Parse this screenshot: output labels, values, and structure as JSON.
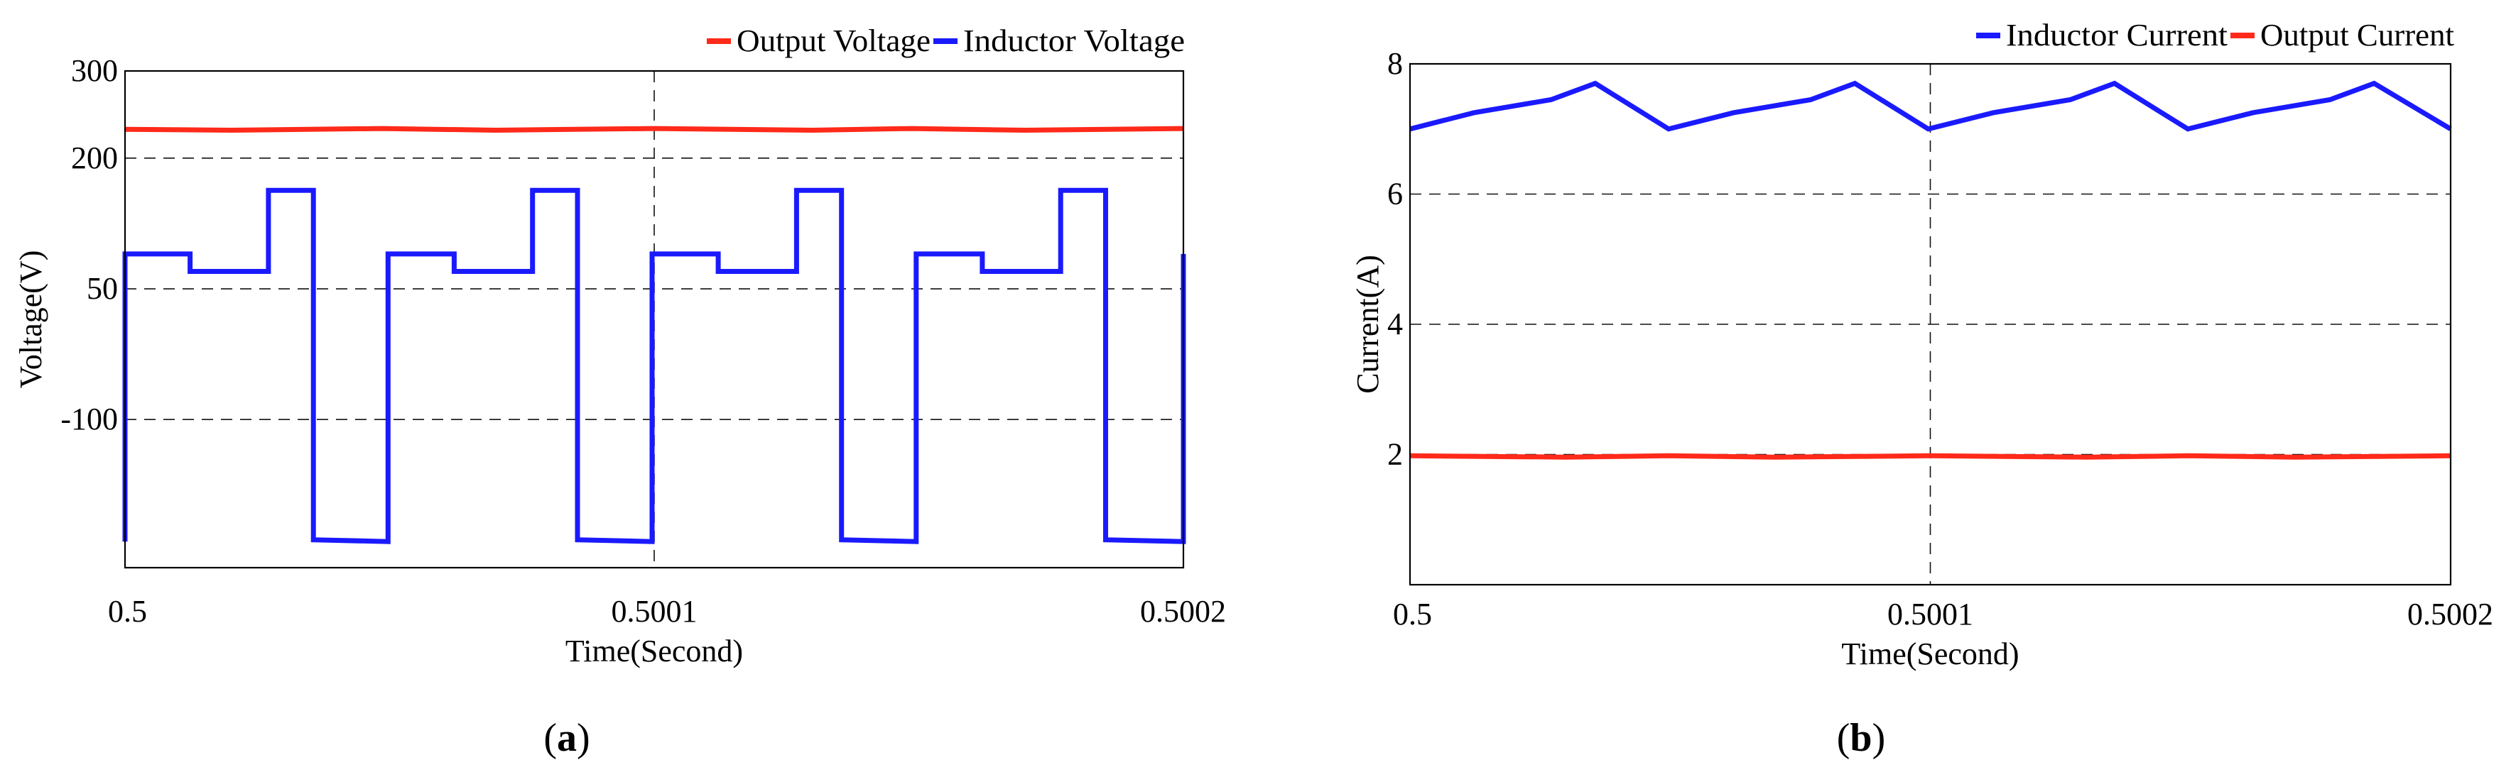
{
  "figure": {
    "colors": {
      "red": "#ff2a1a",
      "blue": "#1a1aff",
      "grid": "#111111"
    }
  },
  "panels": {
    "a": {
      "caption": "(a)",
      "caption_letter": "a"
    },
    "b": {
      "caption": "(b)",
      "caption_letter": "b"
    }
  },
  "chart_data": [
    {
      "id": "a",
      "type": "line",
      "xlabel": "Time(Second)",
      "ylabel": "Voltage(V)",
      "xlim": [
        0.5,
        0.5002
      ],
      "ylim": [
        -270,
        300
      ],
      "xticks": [
        0.5,
        0.5001,
        0.5002
      ],
      "xtick_labels": [
        "0.5",
        "0.5001",
        "0.5002"
      ],
      "yticks": [
        -100,
        50,
        200,
        300
      ],
      "ytick_labels": [
        "-100",
        "50",
        "200",
        "300"
      ],
      "legend_position": "top-right",
      "series": [
        {
          "name": "Output Voltage",
          "color": "#ff2a1a",
          "x": [
            0.5,
            0.50002,
            0.5000486,
            0.50007,
            0.5001,
            0.50013,
            0.5001486,
            0.50017,
            0.5002
          ],
          "y": [
            233,
            232,
            234,
            232,
            234,
            232,
            234,
            232,
            234
          ]
        },
        {
          "name": "Inductor Voltage",
          "color": "#1a1aff",
          "x": [
            0.5,
            0.5,
            0.5000123,
            0.5000123,
            0.5000271,
            0.5000271,
            0.5000356,
            0.5000356,
            0.5000497,
            0.5000497,
            0.5000622,
            0.5000622,
            0.500077,
            0.500077,
            0.5000855,
            0.5000855,
            0.5000996,
            0.5000996,
            0.5001121,
            0.5001121,
            0.5001269,
            0.5001269,
            0.5001354,
            0.5001354,
            0.5001495,
            0.5001495,
            0.500162,
            0.500162,
            0.5001768,
            0.5001768,
            0.5001853,
            0.5001853,
            0.5002,
            0.5002
          ],
          "y": [
            -240,
            90,
            90,
            70,
            70,
            163,
            163,
            -238,
            -240,
            90,
            90,
            70,
            70,
            163,
            163,
            -238,
            -240,
            90,
            90,
            70,
            70,
            163,
            163,
            -238,
            -240,
            90,
            90,
            70,
            70,
            163,
            163,
            -238,
            -240,
            90
          ]
        }
      ]
    },
    {
      "id": "b",
      "type": "line",
      "xlabel": "Time(Second)",
      "ylabel": "Current(A)",
      "xlim": [
        0.5,
        0.5002
      ],
      "ylim": [
        0,
        8
      ],
      "xticks": [
        0.5,
        0.5001,
        0.5002
      ],
      "xtick_labels": [
        "0.5",
        "0.5001",
        "0.5002"
      ],
      "yticks": [
        2,
        4,
        6,
        8
      ],
      "ytick_labels": [
        "2",
        "4",
        "6",
        "8"
      ],
      "legend_position": "top-right",
      "series": [
        {
          "name": "Inductor Current",
          "color": "#1a1aff",
          "x": [
            0.5,
            0.5000123,
            0.5000271,
            0.5000356,
            0.5000497,
            0.5000622,
            0.500077,
            0.5000855,
            0.5000996,
            0.5001121,
            0.5001269,
            0.5001354,
            0.5001495,
            0.500162,
            0.5001768,
            0.5001853,
            0.5002
          ],
          "y": [
            7.0,
            7.25,
            7.45,
            7.7,
            7.0,
            7.25,
            7.45,
            7.7,
            7.0,
            7.25,
            7.45,
            7.7,
            7.0,
            7.25,
            7.45,
            7.7,
            7.0
          ]
        },
        {
          "name": "Output Current",
          "color": "#ff2a1a",
          "x": [
            0.5,
            0.50003,
            0.5000496,
            0.50007,
            0.5001,
            0.50013,
            0.5001496,
            0.50017,
            0.5002
          ],
          "y": [
            1.98,
            1.96,
            1.98,
            1.96,
            1.98,
            1.96,
            1.98,
            1.96,
            1.98
          ]
        }
      ]
    }
  ]
}
